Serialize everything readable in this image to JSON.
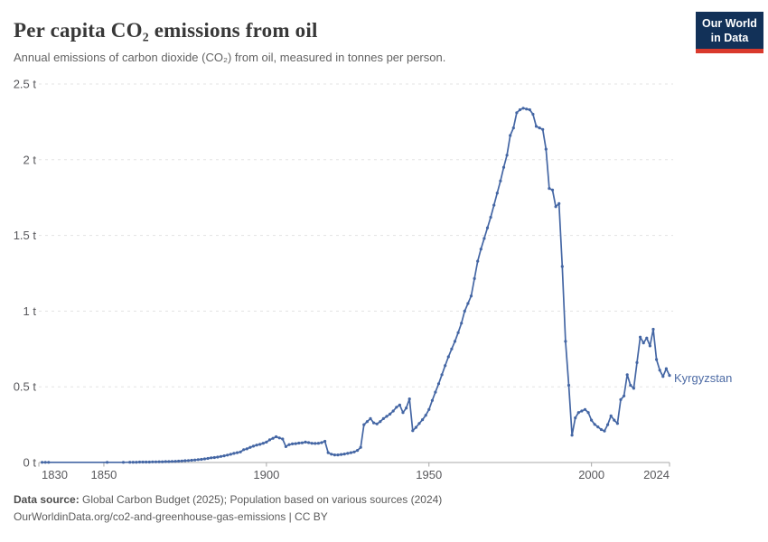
{
  "header": {
    "title": "Per capita CO₂ emissions from oil",
    "subtitle": "Annual emissions of carbon dioxide (CO₂) from oil, measured in tonnes per person.",
    "logo": {
      "line1": "Our World",
      "line2": "in Data",
      "bg_color": "#123158",
      "bar_color": "#d93a2d"
    }
  },
  "footer": {
    "source_label": "Data source:",
    "source_text": " Global Carbon Budget (2025); Population based on various sources (2024)",
    "citation": "OurWorldinData.org/co2-and-greenhouse-gas-emissions | CC BY"
  },
  "colors": {
    "line": "#4466a4",
    "entity_label": "#4d6ba5",
    "gridline": "#e3e3e3",
    "axis": "#a8a8a8",
    "tick_text": "#58585c"
  },
  "chart_data": {
    "type": "line",
    "title": "Per capita CO₂ emissions from oil",
    "xlabel": "",
    "ylabel": "tonnes per person",
    "x_range": [
      1830,
      2024
    ],
    "ylim": [
      0,
      2.5
    ],
    "grid": "horizontal-dashed",
    "legend_position": "end-of-line",
    "x_ticks": [
      {
        "year": 1830,
        "label": "1830",
        "anchor": "start"
      },
      {
        "year": 1850,
        "label": "1850",
        "anchor": "middle"
      },
      {
        "year": 1900,
        "label": "1900",
        "anchor": "middle"
      },
      {
        "year": 1950,
        "label": "1950",
        "anchor": "middle"
      },
      {
        "year": 2000,
        "label": "2000",
        "anchor": "middle"
      },
      {
        "year": 2024,
        "label": "2024",
        "anchor": "end"
      }
    ],
    "y_ticks": [
      {
        "value": 0,
        "label": "0 t"
      },
      {
        "value": 0.5,
        "label": "0.5 t"
      },
      {
        "value": 1,
        "label": "1 t"
      },
      {
        "value": 1.5,
        "label": "1.5 t"
      },
      {
        "value": 2,
        "label": "2 t"
      },
      {
        "value": 2.5,
        "label": "2.5 t"
      }
    ],
    "series": [
      {
        "name": "Kyrgyzstan",
        "color": "#4466a4",
        "points": [
          [
            1831,
            0.001
          ],
          [
            1832,
            0.001
          ],
          [
            1833,
            0.001
          ],
          [
            1851,
            0.001
          ],
          [
            1856,
            0.001
          ],
          [
            1858,
            0.002
          ],
          [
            1859,
            0.002
          ],
          [
            1860,
            0.002
          ],
          [
            1861,
            0.003
          ],
          [
            1862,
            0.003
          ],
          [
            1863,
            0.003
          ],
          [
            1864,
            0.003
          ],
          [
            1865,
            0.004
          ],
          [
            1866,
            0.004
          ],
          [
            1867,
            0.005
          ],
          [
            1868,
            0.005
          ],
          [
            1869,
            0.006
          ],
          [
            1870,
            0.006
          ],
          [
            1871,
            0.007
          ],
          [
            1872,
            0.008
          ],
          [
            1873,
            0.009
          ],
          [
            1874,
            0.01
          ],
          [
            1875,
            0.012
          ],
          [
            1876,
            0.013
          ],
          [
            1877,
            0.015
          ],
          [
            1878,
            0.017
          ],
          [
            1879,
            0.019
          ],
          [
            1880,
            0.021
          ],
          [
            1881,
            0.024
          ],
          [
            1882,
            0.027
          ],
          [
            1883,
            0.031
          ],
          [
            1884,
            0.033
          ],
          [
            1885,
            0.036
          ],
          [
            1886,
            0.04
          ],
          [
            1887,
            0.044
          ],
          [
            1888,
            0.049
          ],
          [
            1889,
            0.054
          ],
          [
            1890,
            0.06
          ],
          [
            1891,
            0.065
          ],
          [
            1892,
            0.07
          ],
          [
            1893,
            0.085
          ],
          [
            1894,
            0.09
          ],
          [
            1895,
            0.1
          ],
          [
            1896,
            0.108
          ],
          [
            1897,
            0.115
          ],
          [
            1898,
            0.12
          ],
          [
            1899,
            0.127
          ],
          [
            1900,
            0.135
          ],
          [
            1901,
            0.15
          ],
          [
            1902,
            0.16
          ],
          [
            1903,
            0.17
          ],
          [
            1904,
            0.162
          ],
          [
            1905,
            0.155
          ],
          [
            1906,
            0.105
          ],
          [
            1907,
            0.118
          ],
          [
            1908,
            0.123
          ],
          [
            1909,
            0.125
          ],
          [
            1910,
            0.128
          ],
          [
            1911,
            0.13
          ],
          [
            1912,
            0.135
          ],
          [
            1913,
            0.131
          ],
          [
            1914,
            0.127
          ],
          [
            1915,
            0.126
          ],
          [
            1916,
            0.127
          ],
          [
            1917,
            0.131
          ],
          [
            1918,
            0.14
          ],
          [
            1919,
            0.065
          ],
          [
            1920,
            0.055
          ],
          [
            1921,
            0.05
          ],
          [
            1922,
            0.05
          ],
          [
            1923,
            0.053
          ],
          [
            1924,
            0.056
          ],
          [
            1925,
            0.06
          ],
          [
            1926,
            0.065
          ],
          [
            1927,
            0.07
          ],
          [
            1928,
            0.08
          ],
          [
            1929,
            0.1
          ],
          [
            1930,
            0.25
          ],
          [
            1931,
            0.27
          ],
          [
            1932,
            0.29
          ],
          [
            1933,
            0.262
          ],
          [
            1934,
            0.255
          ],
          [
            1935,
            0.27
          ],
          [
            1936,
            0.29
          ],
          [
            1937,
            0.305
          ],
          [
            1938,
            0.32
          ],
          [
            1939,
            0.34
          ],
          [
            1940,
            0.365
          ],
          [
            1941,
            0.38
          ],
          [
            1942,
            0.33
          ],
          [
            1943,
            0.36
          ],
          [
            1944,
            0.42
          ],
          [
            1945,
            0.21
          ],
          [
            1946,
            0.232
          ],
          [
            1947,
            0.258
          ],
          [
            1948,
            0.283
          ],
          [
            1949,
            0.312
          ],
          [
            1950,
            0.35
          ],
          [
            1951,
            0.41
          ],
          [
            1952,
            0.465
          ],
          [
            1953,
            0.52
          ],
          [
            1954,
            0.58
          ],
          [
            1955,
            0.64
          ],
          [
            1956,
            0.698
          ],
          [
            1957,
            0.75
          ],
          [
            1958,
            0.8
          ],
          [
            1959,
            0.858
          ],
          [
            1960,
            0.92
          ],
          [
            1961,
            1.0
          ],
          [
            1962,
            1.05
          ],
          [
            1963,
            1.1
          ],
          [
            1964,
            1.215
          ],
          [
            1965,
            1.33
          ],
          [
            1966,
            1.41
          ],
          [
            1967,
            1.48
          ],
          [
            1968,
            1.55
          ],
          [
            1969,
            1.62
          ],
          [
            1970,
            1.7
          ],
          [
            1971,
            1.78
          ],
          [
            1972,
            1.86
          ],
          [
            1973,
            1.95
          ],
          [
            1974,
            2.03
          ],
          [
            1975,
            2.16
          ],
          [
            1976,
            2.21
          ],
          [
            1977,
            2.31
          ],
          [
            1978,
            2.33
          ],
          [
            1979,
            2.34
          ],
          [
            1980,
            2.335
          ],
          [
            1981,
            2.33
          ],
          [
            1982,
            2.3
          ],
          [
            1983,
            2.22
          ],
          [
            1984,
            2.21
          ],
          [
            1985,
            2.2
          ],
          [
            1986,
            2.07
          ],
          [
            1987,
            1.81
          ],
          [
            1988,
            1.8
          ],
          [
            1989,
            1.69
          ],
          [
            1990,
            1.71
          ],
          [
            1991,
            1.295
          ],
          [
            1992,
            0.8
          ],
          [
            1993,
            0.51
          ],
          [
            1994,
            0.18
          ],
          [
            1995,
            0.295
          ],
          [
            1996,
            0.33
          ],
          [
            1997,
            0.34
          ],
          [
            1998,
            0.35
          ],
          [
            1999,
            0.33
          ],
          [
            2000,
            0.28
          ],
          [
            2001,
            0.252
          ],
          [
            2002,
            0.235
          ],
          [
            2003,
            0.218
          ],
          [
            2004,
            0.208
          ],
          [
            2005,
            0.25
          ],
          [
            2006,
            0.308
          ],
          [
            2007,
            0.28
          ],
          [
            2008,
            0.258
          ],
          [
            2009,
            0.415
          ],
          [
            2010,
            0.44
          ],
          [
            2011,
            0.58
          ],
          [
            2012,
            0.51
          ],
          [
            2013,
            0.49
          ],
          [
            2014,
            0.66
          ],
          [
            2015,
            0.828
          ],
          [
            2016,
            0.79
          ],
          [
            2017,
            0.822
          ],
          [
            2018,
            0.77
          ],
          [
            2019,
            0.88
          ],
          [
            2020,
            0.68
          ],
          [
            2021,
            0.61
          ],
          [
            2022,
            0.568
          ],
          [
            2023,
            0.62
          ],
          [
            2024,
            0.575
          ]
        ]
      }
    ]
  }
}
